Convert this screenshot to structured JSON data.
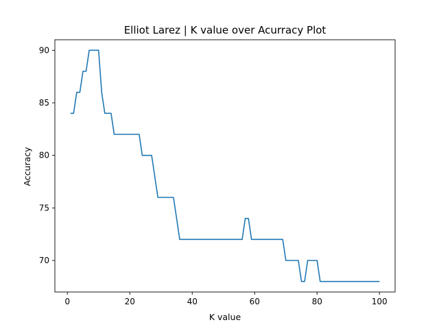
{
  "chart_data": {
    "type": "line",
    "title": "Elliot Larez | K value over Acurracy Plot",
    "xlabel": "K value",
    "ylabel": "Accuracy",
    "xlim": [
      -4,
      105
    ],
    "ylim": [
      67.0,
      91.0
    ],
    "xticks": [
      0,
      20,
      40,
      60,
      80,
      100
    ],
    "yticks": [
      70,
      75,
      80,
      85,
      90
    ],
    "grid": false,
    "legend": "none",
    "series": [
      {
        "color": "#1f77b4",
        "x": [
          1,
          2,
          3,
          4,
          5,
          6,
          7,
          8,
          9,
          10,
          11,
          12,
          13,
          14,
          15,
          16,
          17,
          18,
          19,
          20,
          21,
          22,
          23,
          24,
          25,
          26,
          27,
          28,
          29,
          30,
          31,
          32,
          33,
          34,
          35,
          36,
          37,
          38,
          39,
          40,
          41,
          42,
          43,
          44,
          45,
          46,
          47,
          48,
          49,
          50,
          51,
          52,
          53,
          54,
          55,
          56,
          57,
          58,
          59,
          60,
          61,
          62,
          63,
          64,
          65,
          66,
          67,
          68,
          69,
          70,
          71,
          72,
          73,
          74,
          75,
          76,
          77,
          78,
          79,
          80,
          81,
          82,
          83,
          84,
          85,
          86,
          87,
          88,
          89,
          90,
          91,
          92,
          93,
          94,
          95,
          96,
          97,
          98,
          99,
          100
        ],
        "y": [
          84,
          84,
          86,
          86,
          88,
          88,
          90,
          90,
          90,
          90,
          86,
          84,
          84,
          84,
          82,
          82,
          82,
          82,
          82,
          82,
          82,
          82,
          82,
          80,
          80,
          80,
          80,
          78,
          76,
          76,
          76,
          76,
          76,
          76,
          74,
          72,
          72,
          72,
          72,
          72,
          72,
          72,
          72,
          72,
          72,
          72,
          72,
          72,
          72,
          72,
          72,
          72,
          72,
          72,
          72,
          72,
          74,
          74,
          72,
          72,
          72,
          72,
          72,
          72,
          72,
          72,
          72,
          72,
          72,
          70,
          70,
          70,
          70,
          70,
          68,
          68,
          70,
          70,
          70,
          70,
          68,
          68,
          68,
          68,
          68,
          68,
          68,
          68,
          68,
          68,
          68,
          68,
          68,
          68,
          68,
          68,
          68,
          68,
          68,
          68
        ]
      }
    ]
  }
}
